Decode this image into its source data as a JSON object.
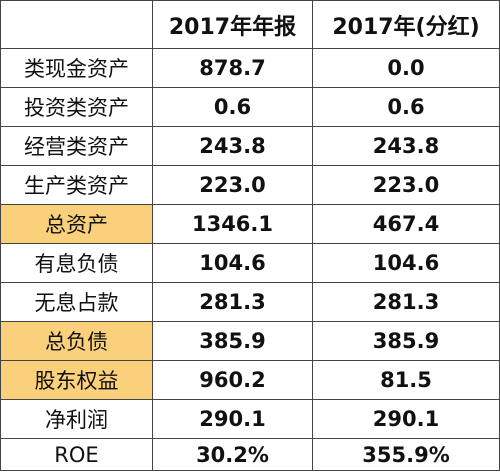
{
  "table": {
    "header": [
      "",
      "2017年年报",
      "2017年(分红)"
    ],
    "rows": [
      [
        "类现金资产",
        "878.7",
        "0.0"
      ],
      [
        "投资类资产",
        "0.6",
        "0.6"
      ],
      [
        "经营类资产",
        "243.8",
        "243.8"
      ],
      [
        "生产类资产",
        "223.0",
        "223.0"
      ],
      [
        "总资产",
        "1346.1",
        "467.4"
      ],
      [
        "有息负债",
        "104.6",
        "104.6"
      ],
      [
        "无息占款",
        "281.3",
        "281.3"
      ],
      [
        "总负债",
        "385.9",
        "385.9"
      ],
      [
        "股东权益",
        "960.2",
        "81.5"
      ],
      [
        "净利润",
        "290.1",
        "290.1"
      ],
      [
        "ROE",
        "30.2%",
        "355.9%"
      ]
    ]
  }
}
